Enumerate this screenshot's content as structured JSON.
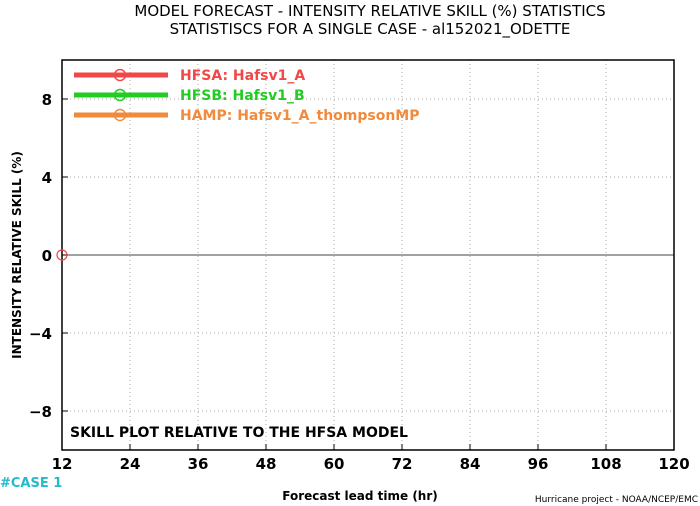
{
  "chart_data": {
    "type": "line",
    "title": "MODEL FORECAST - INTENSITY RELATIVE SKILL (%) STATISTICS",
    "subtitle": "STATISTISCS FOR A SINGLE CASE - al152021_ODETTE",
    "xlabel": "Forecast lead time (hr)",
    "ylabel": "INTENSITY RELATIVE SKILL (%)",
    "xlim": [
      12,
      120
    ],
    "ylim": [
      -10,
      10
    ],
    "x_ticks": [
      12,
      24,
      36,
      48,
      60,
      72,
      84,
      96,
      108,
      120
    ],
    "y_ticks": [
      8,
      4,
      0,
      -4,
      -8
    ],
    "y_tick_labels": [
      "8",
      "4",
      "0",
      "−4",
      "−8"
    ],
    "grid": true,
    "legend_position": "top-left",
    "series": [
      {
        "name": "HFSA: Hafsv1_A",
        "color": "#f04848",
        "x": [
          12
        ],
        "y": [
          0
        ]
      },
      {
        "name": "HFSB: Hafsv1_B",
        "color": "#22cc22",
        "x": [],
        "y": []
      },
      {
        "name": "HAMP: Hafsv1_A_thompsonMP",
        "color": "#f08a3c",
        "x": [],
        "y": []
      }
    ],
    "annotation": "SKILL PLOT RELATIVE TO THE HFSA MODEL",
    "case_label": "#CASE  1",
    "case_color": "#22bbcc",
    "credit": "Hurricane project - NOAA/NCEP/EMC"
  }
}
